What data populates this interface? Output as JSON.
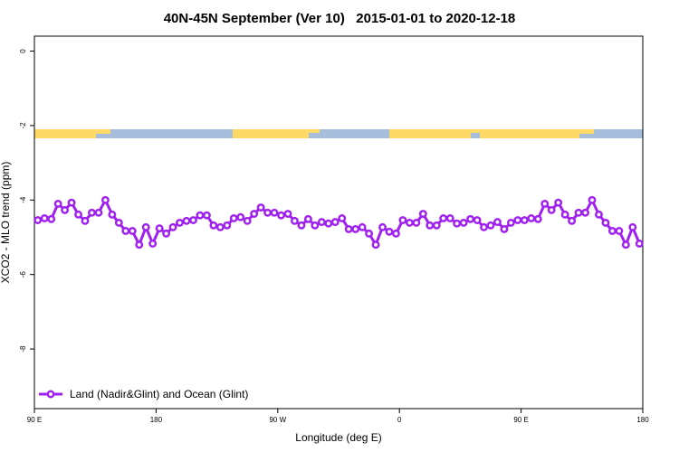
{
  "chart_data": {
    "type": "line",
    "title": "40N-45N September (Ver 10)   2015-01-01 to 2020-12-18",
    "x_label": "Longitude (deg E)",
    "y_label": "XCO2 - MLO trend (ppm)",
    "xlim": [
      90,
      540
    ],
    "ylim": [
      -9.6,
      0.4
    ],
    "xticks": [
      {
        "value": 90,
        "label": "90 E"
      },
      180,
      {
        "value": 270,
        "label": "90 W"
      },
      {
        "value": 360,
        "label": "0"
      },
      {
        "value": 450,
        "label": "90 E"
      },
      {
        "value": 540,
        "label": "180"
      }
    ],
    "yticks": [
      0,
      -2,
      -4,
      -6,
      -8
    ],
    "legend": "bottom-left",
    "x": [
      92.5,
      97.5,
      102.5,
      107.5,
      112.5,
      117.5,
      122.5,
      127.5,
      132.5,
      137.5,
      142.5,
      147.5,
      152.5,
      157.5,
      162.5,
      167.5,
      172.5,
      177.5,
      182.5,
      187.5,
      192.5,
      197.5,
      202.5,
      207.5,
      212.5,
      217.5,
      222.5,
      227.5,
      232.5,
      237.5,
      242.5,
      247.5,
      252.5,
      257.5,
      262.5,
      267.5,
      272.5,
      277.5,
      282.5,
      287.5,
      292.5,
      297.5,
      302.5,
      307.5,
      312.5,
      317.5,
      322.5,
      327.5,
      332.5,
      337.5,
      342.5,
      347.5,
      352.5,
      357.5,
      362.5,
      367.5,
      372.5,
      377.5,
      382.5,
      387.5,
      392.5,
      397.5,
      402.5,
      407.5,
      412.5,
      417.5,
      422.5,
      427.5,
      432.5,
      437.5,
      442.5,
      447.5,
      452.5,
      457.5,
      462.5,
      467.5,
      472.5,
      477.5,
      482.5,
      487.5,
      492.5,
      497.5,
      502.5,
      507.5,
      512.5,
      517.5,
      522.5,
      527.5,
      532.5,
      537.5
    ],
    "series": [
      {
        "name": "Land (Nadir&Glint) and Ocean (Glint)",
        "color": "#a020f0",
        "values": [
          -4.54,
          -4.49,
          -4.51,
          -4.1,
          -4.27,
          -4.07,
          -4.39,
          -4.56,
          -4.34,
          -4.34,
          -4.0,
          -4.39,
          -4.61,
          -4.83,
          -4.83,
          -5.2,
          -4.73,
          -5.17,
          -4.76,
          -4.9,
          -4.73,
          -4.61,
          -4.56,
          -4.54,
          -4.41,
          -4.41,
          -4.68,
          -4.73,
          -4.68,
          -4.49,
          -4.46,
          -4.56,
          -4.37,
          -4.2,
          -4.34,
          -4.34,
          -4.41,
          -4.37,
          -4.56,
          -4.68,
          -4.51,
          -4.68,
          -4.59,
          -4.63,
          -4.59,
          -4.49,
          -4.78,
          -4.78,
          -4.73,
          -4.9,
          -5.2,
          -4.73,
          -4.85,
          -4.9,
          -4.54,
          -4.61,
          -4.61,
          -4.37,
          -4.68,
          -4.68,
          -4.49,
          -4.49,
          -4.63,
          -4.61,
          -4.51,
          -4.54,
          -4.73,
          -4.68,
          -4.59,
          -4.78,
          -4.61,
          -4.54,
          -4.54,
          -4.49,
          -4.51,
          -4.1,
          -4.27,
          -4.07,
          -4.39,
          -4.56,
          -4.34,
          -4.34,
          -4.0,
          -4.39,
          -4.61,
          -4.83,
          -4.83,
          -5.2,
          -4.73,
          -5.17
        ]
      }
    ]
  }
}
